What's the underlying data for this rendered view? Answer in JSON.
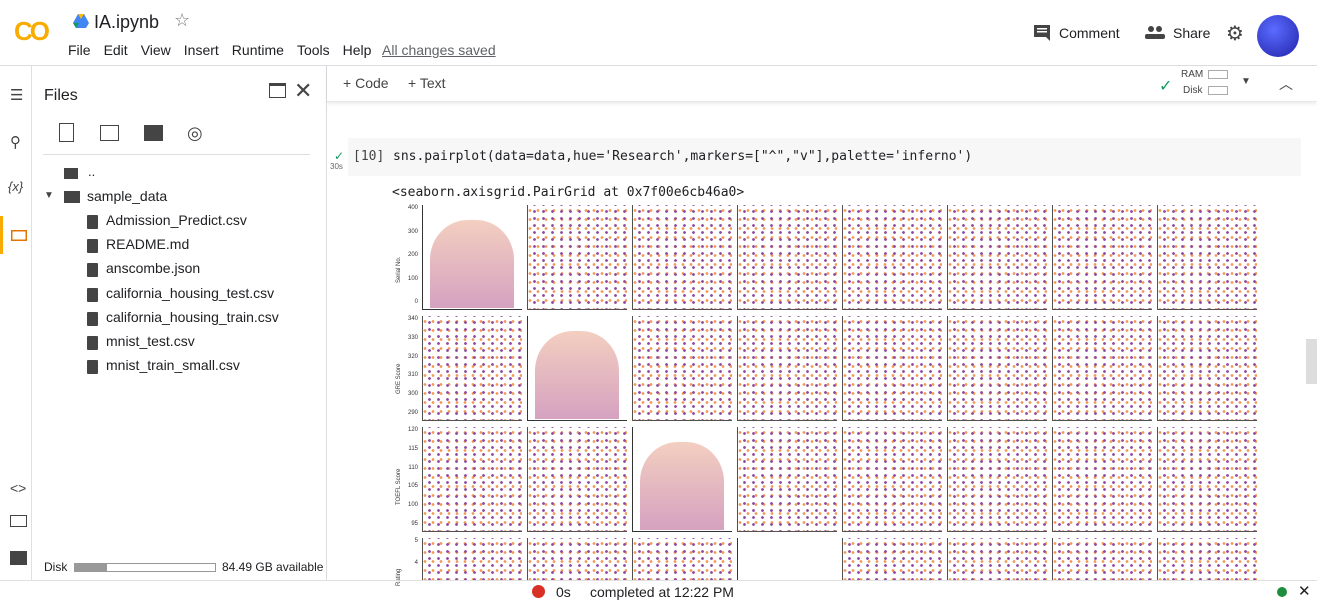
{
  "header": {
    "logo": "CO",
    "title": "IA.ipynb",
    "menu": [
      "File",
      "Edit",
      "View",
      "Insert",
      "Runtime",
      "Tools",
      "Help"
    ],
    "save_status": "All changes saved",
    "comment": "Comment",
    "share": "Share"
  },
  "sidebar": {
    "title": "Files",
    "parent": "..",
    "folder": "sample_data",
    "files": [
      "Admission_Predict.csv",
      "README.md",
      "anscombe.json",
      "california_housing_test.csv",
      "california_housing_train.csv",
      "mnist_test.csv",
      "mnist_train_small.csv"
    ],
    "disk_label": "Disk",
    "disk_available": "84.49 GB available"
  },
  "toolbar": {
    "code": "Code",
    "text": "Text",
    "ram": "RAM",
    "disk": "Disk"
  },
  "cell": {
    "exec_count": "[10]",
    "time": "30s",
    "code": "sns.pairplot(data=data,hue='Research',markers=[\"^\",\"v\"],palette='inferno')",
    "output": "<seaborn.axisgrid.PairGrid at 0x7f00e6cb46a0>"
  },
  "plot": {
    "ylabels": [
      "Serial No.",
      "GRE Score",
      "TOEFL Score",
      "Rating"
    ],
    "row_ticks": [
      [
        "400",
        "300",
        "200",
        "100",
        "0"
      ],
      [
        "340",
        "330",
        "320",
        "310",
        "300",
        "290"
      ],
      [
        "120",
        "115",
        "110",
        "105",
        "100",
        "95"
      ],
      [
        "5",
        "4"
      ]
    ]
  },
  "status": {
    "time": "0s",
    "completed": "completed at 12:22 PM"
  }
}
